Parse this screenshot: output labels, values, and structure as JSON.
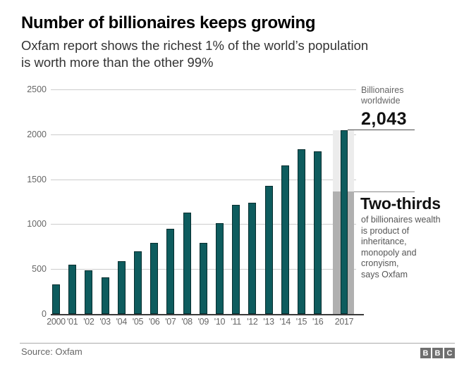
{
  "header": {
    "title": "Number of billionaires keeps growing",
    "subtitle": "Oxfam report shows the richest 1% of the world’s population\nis worth more than the other 99%"
  },
  "chart_data": {
    "type": "bar",
    "title": "Number of billionaires keeps growing",
    "xlabel": "",
    "ylabel": "",
    "categories": [
      "2000",
      "'01",
      "'02",
      "'03",
      "'04",
      "'05",
      "'06",
      "'07",
      "'08",
      "'09",
      "'10",
      "'11",
      "'12",
      "'13",
      "'14",
      "'15",
      "'16",
      "2017"
    ],
    "values": [
      330,
      550,
      485,
      405,
      585,
      700,
      795,
      945,
      1130,
      795,
      1010,
      1215,
      1235,
      1430,
      1650,
      1835,
      1810,
      2043
    ],
    "y_ticks": [
      0,
      500,
      1000,
      1500,
      2000,
      2500
    ],
    "ylim": [
      0,
      2500
    ],
    "grid": true,
    "bar_color": "#0e5c5e",
    "highlight": {
      "category": "2017",
      "value": 2043,
      "two_thirds_value": 1362,
      "band_color": "#ececec",
      "two_thirds_bar_color": "#b0b0b0"
    }
  },
  "annotations": {
    "billionaires_label": "Billionaires\nworldwide",
    "billionaires_value": "2,043",
    "two_thirds_title": "Two-thirds",
    "two_thirds_text": "of billionaires wealth\nis product of\ninheritance,\nmonopoly and\ncronyism,\nsays Oxfam"
  },
  "footer": {
    "source": "Source: Oxfam",
    "logo_letters": [
      "B",
      "B",
      "C"
    ]
  }
}
